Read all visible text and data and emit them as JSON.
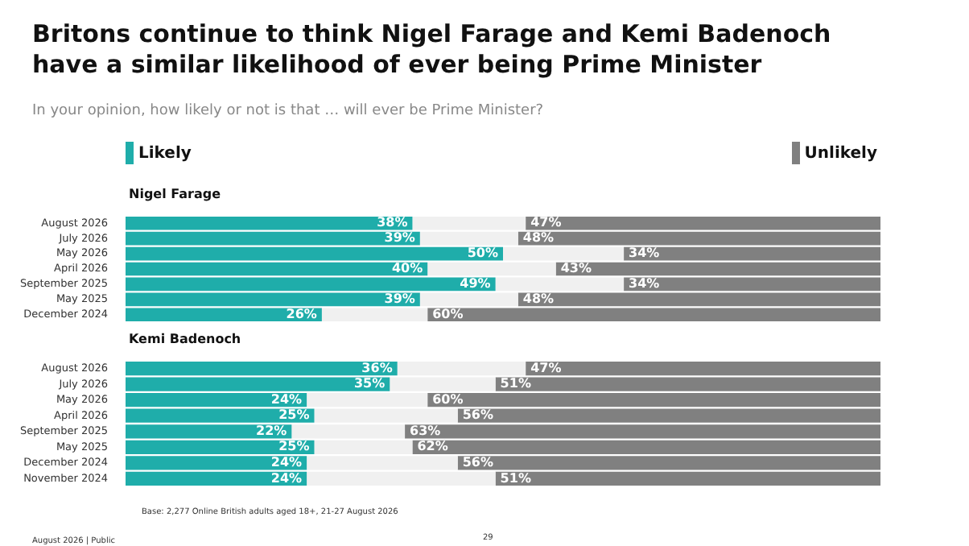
{
  "chart_data": [
    {
      "type": "other",
      "title": "Britons continue to think Nigel Farage and Kemi Badenoch have a similar likelihood of ever being Prime Minister",
      "subtitle": "In your opinion, how likely or not is that … will ever be Prime Minister?"
    },
    {
      "type": "bar",
      "orientation": "horizontal",
      "stacked": true,
      "title": "Nigel Farage",
      "legend": "top",
      "tick_labels": "y",
      "xlim": [
        0,
        100
      ],
      "categories": [
        "August 2026",
        "July 2026",
        "May 2026",
        "April 2026",
        "September 2025",
        "May 2025",
        "December 2024"
      ],
      "series": [
        {
          "name": "Likely",
          "color": "#1fadaa",
          "values": [
            38,
            39,
            50,
            40,
            49,
            39,
            26
          ],
          "value_labels": [
            "38%",
            "39%",
            "50%",
            "40%",
            "49%",
            "39%",
            "26%"
          ]
        },
        {
          "color": "#f0f0f0",
          "values": [
            15,
            13,
            16,
            17,
            17,
            13,
            14
          ]
        },
        {
          "name": "Unlikely",
          "color": "#808080",
          "values": [
            47,
            48,
            34,
            43,
            34,
            48,
            60
          ],
          "value_labels": [
            "47%",
            "48%",
            "34%",
            "43%",
            "34%",
            "48%",
            "60%"
          ]
        }
      ]
    },
    {
      "type": "bar",
      "orientation": "horizontal",
      "stacked": true,
      "title": "Kemi Badenoch",
      "tick_labels": "y",
      "xlim": [
        0,
        100
      ],
      "categories": [
        "August 2026",
        "July 2026",
        "May 2026",
        "April 2026",
        "September 2025",
        "May 2025",
        "December 2024",
        "November 2024"
      ],
      "series": [
        {
          "color": "#1fadaa",
          "values": [
            36,
            35,
            24,
            25,
            22,
            25,
            24,
            24
          ],
          "value_labels": [
            "36%",
            "35%",
            "24%",
            "25%",
            "22%",
            "25%",
            "24%",
            "24%"
          ]
        },
        {
          "color": "#f0f0f0",
          "values": [
            17,
            14,
            16,
            19,
            15,
            13,
            20,
            25
          ]
        },
        {
          "color": "#808080",
          "values": [
            47,
            51,
            60,
            56,
            63,
            62,
            56,
            51
          ],
          "value_labels": [
            "47%",
            "51%",
            "60%",
            "56%",
            "63%",
            "62%",
            "56%",
            "51%"
          ]
        }
      ],
      "annotations": [
        "Base: 2,277 Online British adults aged 18+, 21-27 August 2026",
        "August 2026 | Public",
        "29"
      ]
    }
  ]
}
